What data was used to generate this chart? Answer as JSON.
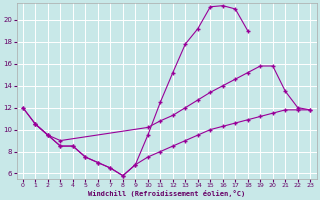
{
  "xlabel": "Windchill (Refroidissement éolien,°C)",
  "bg_color": "#c8e8e8",
  "grid_color": "#ffffff",
  "line_color": "#990099",
  "xlim": [
    -0.5,
    23.5
  ],
  "ylim": [
    5.5,
    21.5
  ],
  "yticks": [
    6,
    8,
    10,
    12,
    14,
    16,
    18,
    20
  ],
  "xticks": [
    0,
    1,
    2,
    3,
    4,
    5,
    6,
    7,
    8,
    9,
    10,
    11,
    12,
    13,
    14,
    15,
    16,
    17,
    18,
    19,
    20,
    21,
    22,
    23
  ],
  "line1_x": [
    0,
    1,
    2,
    3,
    4,
    5,
    6,
    7,
    8,
    9,
    10,
    11,
    12,
    13,
    14,
    15,
    16,
    17,
    18
  ],
  "line1_y": [
    12.0,
    10.5,
    9.5,
    8.5,
    8.5,
    7.5,
    7.0,
    6.5,
    5.8,
    6.8,
    9.5,
    12.5,
    15.2,
    17.8,
    19.2,
    21.2,
    21.3,
    21.0,
    19.0
  ],
  "line2_x": [
    0,
    1,
    2,
    3,
    10,
    11,
    12,
    13,
    14,
    15,
    16,
    17,
    18,
    19,
    20,
    21,
    22,
    23
  ],
  "line2_y": [
    12.0,
    10.5,
    9.5,
    9.0,
    10.2,
    10.8,
    11.3,
    12.0,
    12.7,
    13.4,
    14.0,
    14.6,
    15.2,
    15.8,
    15.8,
    13.5,
    12.0,
    11.8
  ],
  "line3_x": [
    1,
    2,
    3,
    4,
    5,
    6,
    7,
    8,
    9,
    10,
    11,
    12,
    13,
    14,
    15,
    16,
    17,
    18,
    19,
    20,
    21,
    22,
    23
  ],
  "line3_y": [
    10.5,
    9.5,
    8.5,
    8.5,
    7.5,
    7.0,
    6.5,
    5.8,
    6.8,
    7.5,
    8.0,
    8.5,
    9.0,
    9.5,
    10.0,
    10.3,
    10.6,
    10.9,
    11.2,
    11.5,
    11.8,
    11.8,
    11.8
  ]
}
